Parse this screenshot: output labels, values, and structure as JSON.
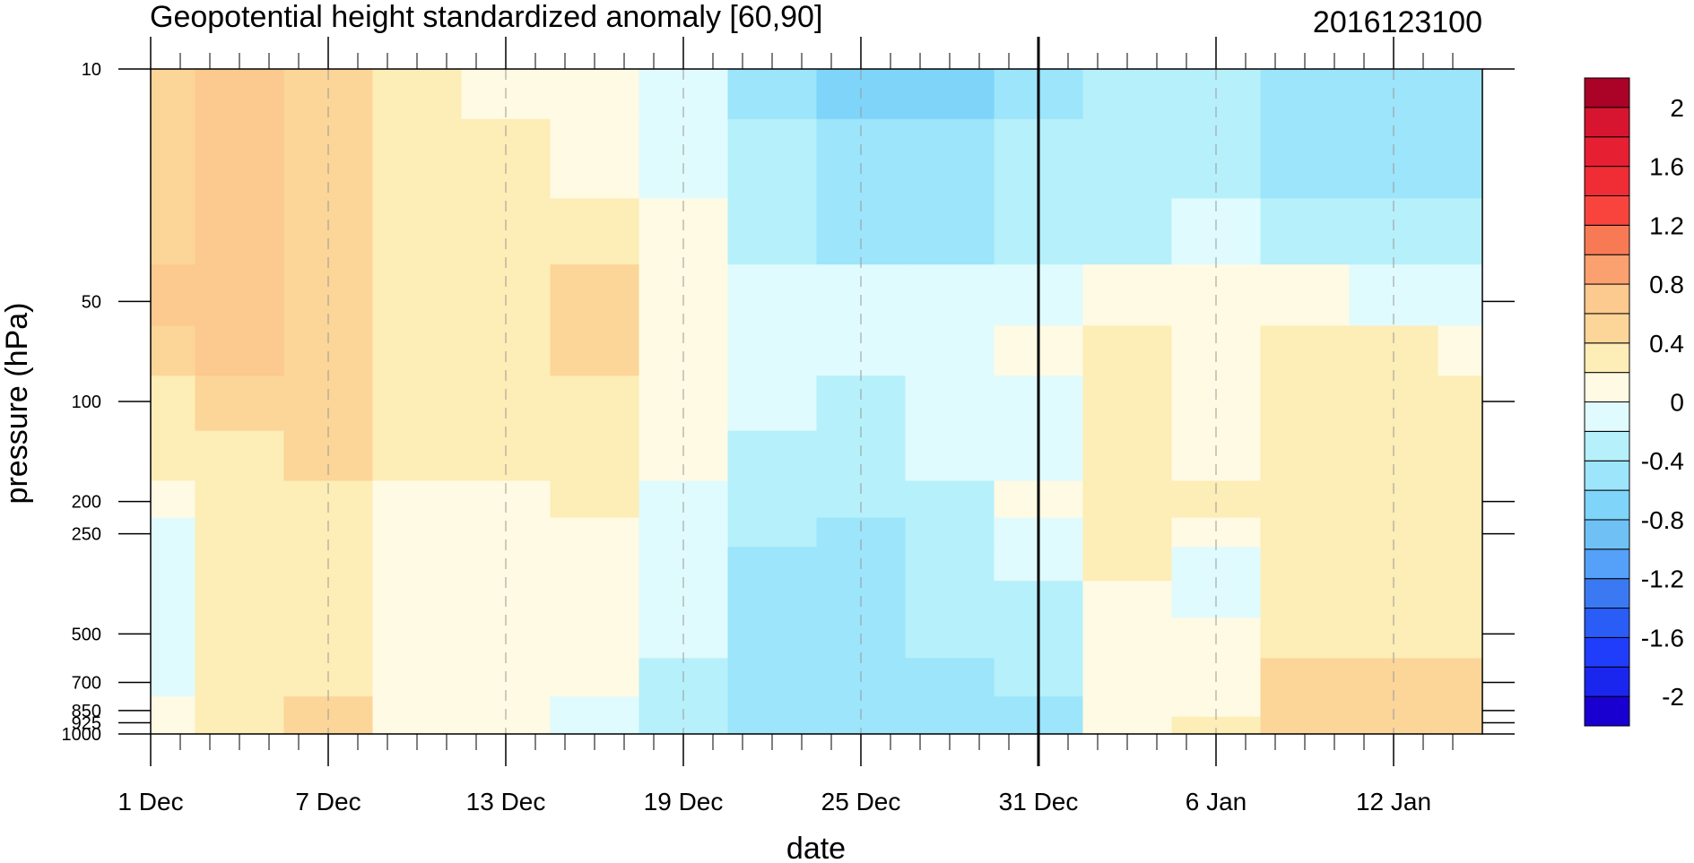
{
  "chart_data": {
    "type": "heatmap",
    "title": "Geopotential height standardized anomaly [60,90]",
    "subtitle": "2016123100",
    "xlabel": "date",
    "ylabel": "pressure (hPa)",
    "x_ticks": [
      "1 Dec",
      "7 Dec",
      "13 Dec",
      "19 Dec",
      "25 Dec",
      "31 Dec",
      "6 Jan",
      "12 Jan"
    ],
    "x_range": [
      "2016-12-01",
      "2017-01-15"
    ],
    "highlight_date": "2016-12-31",
    "y_ticks": [
      "10",
      "50",
      "100",
      "200",
      "250",
      "500",
      "700",
      "850",
      "925",
      "1000"
    ],
    "y_range": [
      1000,
      10
    ],
    "y_scale": "log",
    "dates": [
      "2016-12-01",
      "2016-12-04",
      "2016-12-07",
      "2016-12-10",
      "2016-12-13",
      "2016-12-16",
      "2016-12-19",
      "2016-12-22",
      "2016-12-25",
      "2016-12-28",
      "2016-12-31",
      "2017-01-03",
      "2017-01-06",
      "2017-01-09",
      "2017-01-12",
      "2017-01-15"
    ],
    "levels": [
      10,
      20,
      30,
      50,
      70,
      100,
      150,
      200,
      250,
      300,
      400,
      500,
      700,
      850,
      925,
      1000
    ],
    "values": [
      [
        0.5,
        0.6,
        0.5,
        0.3,
        0.1,
        0.05,
        -0.2,
        -0.5,
        -0.7,
        -0.7,
        -0.5,
        -0.35,
        -0.4,
        -0.5,
        -0.55,
        -0.6
      ],
      [
        0.5,
        0.6,
        0.5,
        0.3,
        0.2,
        0.1,
        -0.1,
        -0.4,
        -0.6,
        -0.6,
        -0.4,
        -0.3,
        -0.35,
        -0.45,
        -0.5,
        -0.55
      ],
      [
        0.5,
        0.6,
        0.5,
        0.35,
        0.2,
        0.2,
        0.0,
        -0.3,
        -0.5,
        -0.5,
        -0.35,
        -0.25,
        -0.2,
        -0.3,
        -0.35,
        -0.4
      ],
      [
        0.6,
        0.6,
        0.5,
        0.35,
        0.3,
        0.5,
        0.1,
        -0.1,
        -0.2,
        -0.15,
        -0.05,
        0.05,
        0.05,
        0.0,
        -0.05,
        -0.1
      ],
      [
        0.5,
        0.6,
        0.5,
        0.35,
        0.3,
        0.5,
        0.1,
        -0.1,
        -0.1,
        -0.05,
        0.05,
        0.3,
        0.1,
        0.2,
        0.2,
        0.1
      ],
      [
        0.3,
        0.5,
        0.45,
        0.3,
        0.25,
        0.3,
        0.05,
        -0.1,
        -0.25,
        -0.1,
        -0.05,
        0.25,
        0.1,
        0.3,
        0.3,
        0.3
      ],
      [
        0.2,
        0.3,
        0.4,
        0.3,
        0.2,
        0.2,
        0.0,
        -0.25,
        -0.35,
        -0.15,
        -0.1,
        0.3,
        0.1,
        0.25,
        0.25,
        0.25
      ],
      [
        0.05,
        0.3,
        0.3,
        0.15,
        0.1,
        0.2,
        -0.05,
        -0.3,
        -0.4,
        -0.3,
        0.0,
        0.3,
        0.2,
        0.25,
        0.25,
        0.25
      ],
      [
        -0.05,
        0.2,
        0.3,
        0.05,
        0.05,
        0.05,
        -0.1,
        -0.4,
        -0.5,
        -0.35,
        -0.05,
        0.25,
        0.05,
        0.25,
        0.25,
        0.25
      ],
      [
        -0.05,
        0.2,
        0.3,
        0.05,
        0.05,
        0.05,
        -0.1,
        -0.45,
        -0.55,
        -0.35,
        -0.15,
        0.2,
        -0.05,
        0.25,
        0.25,
        0.25
      ],
      [
        -0.05,
        0.2,
        0.25,
        0.05,
        0.05,
        0.05,
        -0.15,
        -0.45,
        -0.55,
        -0.35,
        -0.25,
        0.1,
        -0.05,
        0.25,
        0.25,
        0.25
      ],
      [
        -0.05,
        0.2,
        0.25,
        0.05,
        0.05,
        0.0,
        -0.2,
        -0.5,
        -0.5,
        -0.35,
        -0.3,
        0.1,
        0.05,
        0.25,
        0.25,
        0.25
      ],
      [
        -0.05,
        0.2,
        0.3,
        0.05,
        0.05,
        0.0,
        -0.25,
        -0.55,
        -0.55,
        -0.45,
        -0.4,
        0.05,
        0.1,
        0.45,
        0.5,
        0.5
      ],
      [
        0.05,
        0.3,
        0.5,
        0.1,
        0.05,
        -0.05,
        -0.3,
        -0.6,
        -0.5,
        -0.5,
        -0.5,
        0.05,
        0.1,
        0.5,
        0.55,
        0.5
      ],
      [
        0.05,
        0.3,
        0.5,
        0.1,
        0.05,
        -0.05,
        -0.3,
        -0.6,
        -0.6,
        -0.55,
        -0.5,
        0.05,
        0.3,
        0.5,
        0.55,
        0.5
      ],
      [
        0.05,
        0.3,
        0.4,
        0.1,
        0.0,
        -0.05,
        -0.3,
        -0.55,
        -0.6,
        -0.55,
        -0.5,
        0.05,
        0.3,
        0.5,
        0.5,
        0.5
      ]
    ],
    "colorbar": {
      "labels": [
        "2",
        "1.6",
        "1.2",
        "0.8",
        "0.4",
        "0",
        "-0.4",
        "-0.8",
        "-1.2",
        "-1.6",
        "-2"
      ],
      "label_values": [
        2,
        1.6,
        1.2,
        0.8,
        0.4,
        0,
        -0.4,
        -0.8,
        -1.2,
        -1.6,
        -2
      ],
      "levels": [
        -2.2,
        -2.0,
        -1.8,
        -1.6,
        -1.4,
        -1.2,
        -1.0,
        -0.8,
        -0.6,
        -0.4,
        -0.2,
        0.0,
        0.2,
        0.4,
        0.6,
        0.8,
        1.0,
        1.2,
        1.4,
        1.6,
        1.8,
        2.0,
        2.2
      ],
      "colors": [
        "#1a00d0",
        "#1a26ee",
        "#1f3dfa",
        "#2a5cf6",
        "#3b79f2",
        "#55a0f8",
        "#6fc1f5",
        "#7ed5f9",
        "#9ce5fb",
        "#b6f0fb",
        "#e0fbfd",
        "#fefae4",
        "#fdedb6",
        "#fcd598",
        "#fcc98e",
        "#fba06f",
        "#f87a55",
        "#f8443d",
        "#f02c35",
        "#e71f33",
        "#d81530",
        "#ab0227"
      ]
    }
  }
}
